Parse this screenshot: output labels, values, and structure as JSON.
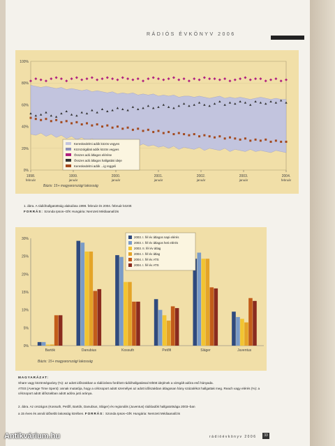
{
  "header": "RÁDIÓS ÉVKÖNYV 2006",
  "colors": {
    "page_bg": "#f4f2ec",
    "chart_bg": "#f1dfa8",
    "band": "#c2c4de",
    "reach": "#b0207f",
    "time": "#333333",
    "share": "#a34a1e"
  },
  "chart_data": [
    {
      "type": "line",
      "ylim": [
        0,
        100
      ],
      "yticks": [
        "0%",
        "20%",
        "40%",
        "60%",
        "80%",
        "100%"
      ],
      "x_ticks": [
        {
          "year": "1998.",
          "month": "február"
        },
        {
          "year": "1999.",
          "month": "január"
        },
        {
          "year": "2000.",
          "month": "január"
        },
        {
          "year": "2001.",
          "month": "január"
        },
        {
          "year": "2002.",
          "month": "január"
        },
        {
          "year": "2003.",
          "month": "január"
        },
        {
          "year": "2004.",
          "month": "február"
        }
      ],
      "legend": [
        "Kereskedelmi adók közös vegyes",
        "Közszolgálati adók közös vegyes",
        "Összes adó átlagos elérése",
        "Összes adó átlagos hallgatási ideje",
        "Kereskedelmi adók ...ig reggeli"
      ],
      "series": [
        {
          "name": "Összes adó átlagos elérése",
          "values": [
            82,
            84,
            83,
            82,
            84,
            85,
            84,
            82,
            84,
            85,
            83,
            84,
            85,
            83,
            84,
            85,
            84,
            83,
            85,
            84,
            83,
            84,
            82,
            84,
            85,
            84,
            83,
            84,
            85,
            83,
            84,
            82,
            84,
            83,
            85,
            84,
            84,
            83,
            84,
            82,
            83,
            84,
            85,
            83,
            84,
            84,
            82,
            83,
            84,
            82,
            83
          ]
        },
        {
          "name": "Összes adó átlagos hallgatási ideje",
          "values": [
            52,
            50,
            51,
            53,
            50,
            49,
            52,
            54,
            51,
            50,
            53,
            52,
            55,
            53,
            56,
            54,
            55,
            57,
            56,
            55,
            58,
            56,
            57,
            59,
            57,
            58,
            60,
            58,
            57,
            59,
            61,
            59,
            60,
            62,
            60,
            59,
            61,
            63,
            60,
            62,
            61,
            63,
            62,
            60,
            63,
            62,
            61,
            63,
            62,
            64,
            62
          ]
        },
        {
          "name": "Közszolgálati adók közös vegyes",
          "values": [
            48,
            47,
            46,
            47,
            45,
            46,
            44,
            45,
            43,
            44,
            42,
            43,
            41,
            42,
            40,
            41,
            39,
            40,
            38,
            39,
            37,
            38,
            36,
            37,
            35,
            36,
            34,
            35,
            33,
            34,
            33,
            32,
            33,
            31,
            32,
            31,
            30,
            31,
            29,
            30,
            29,
            28,
            29,
            27,
            28,
            27,
            28,
            26,
            27,
            26,
            26
          ]
        }
      ],
      "band_top": [
        78,
        77,
        76,
        77,
        76,
        75,
        76,
        74,
        75,
        74,
        73,
        74,
        72,
        73,
        72,
        71,
        72,
        70,
        71,
        70,
        71,
        69,
        70,
        69,
        70,
        68,
        69,
        68,
        69,
        67,
        68,
        68,
        67,
        68,
        67,
        66,
        67,
        68,
        66,
        67,
        66,
        67,
        66,
        65,
        66,
        67,
        66,
        65,
        66,
        65,
        65
      ],
      "band_bottom": [
        33,
        32,
        34,
        31,
        33,
        30,
        32,
        29,
        31,
        28,
        30,
        27,
        29,
        26,
        28,
        25,
        27,
        24,
        26,
        23,
        25,
        22,
        24,
        22,
        23,
        21,
        22,
        20,
        22,
        19,
        21,
        20,
        19,
        21,
        18,
        20,
        19,
        18,
        20,
        17,
        19,
        18,
        17,
        19,
        17,
        18,
        17,
        16,
        18,
        17,
        16
      ],
      "note": "Bázis: 15+ magyarországi lakosság"
    },
    {
      "type": "bar",
      "ylim": [
        0,
        30
      ],
      "yticks": [
        "0%",
        "5%",
        "10%",
        "15%",
        "20%",
        "25%",
        "30%"
      ],
      "categories": [
        "Bartók",
        "Danubius",
        "Kossuth",
        "Petőfi",
        "Sláger",
        "Juventus"
      ],
      "series": [
        {
          "name": "2003. I. fél év átlagos napi elérés",
          "color": "#2f4a7e",
          "values": [
            1.0,
            29.3,
            25.3,
            13.0,
            24.3,
            9.5
          ]
        },
        {
          "name": "2003. I. fél év átlagos heti elérés",
          "color": "#7a9bc8",
          "values": [
            1.0,
            28.8,
            24.8,
            10.0,
            26.0,
            8.0
          ]
        },
        {
          "name": "2003. II. fél év átlag",
          "color": "#f2c431",
          "values": [
            0.3,
            26.3,
            17.8,
            8.5,
            24.3,
            7.5
          ]
        },
        {
          "name": "2004. I. fél év átlag",
          "color": "#e4a428",
          "values": [
            0.3,
            26.3,
            17.8,
            7.0,
            24.3,
            6.5
          ]
        },
        {
          "name": "2004. I. fél év ATS",
          "color": "#c25c1a",
          "values": [
            8.5,
            15.3,
            12.3,
            11.0,
            16.3,
            13.3
          ]
        },
        {
          "name": "2004. I. fél év ATS",
          "color": "#8a2b1e",
          "values": [
            8.5,
            15.8,
            12.3,
            10.5,
            16.0,
            12.5
          ]
        }
      ],
      "note": "Bázis: 15+ magyarországi lakosság"
    }
  ],
  "captions": {
    "fig1": "1. ábra. A rádióhallgatottság alakulása 1998. február és 2004. február között",
    "fig1_src_label": "FORRÁS:",
    "fig1_src": "Szonda Ipsos–GfK Hungária: Nemzeti Médiaanalízis",
    "expl_title": "MAGYARÁZAT:",
    "expl_lines": [
      "Share vagy közönségarány (%): az adott időszakban a rádiózásra fordított rádióhallgatással töltött idejének a vizsgált adóra eső hányada.",
      "ATSS (Average Time Spent): annak mutatója, hogy a célcsoport adott személyei az adott időszakban átlagosan hány százalékot hallgattak meg. Reach vagy elérés (%): a célcsoport adott időszakban adott adóra jutó aránya."
    ],
    "fig2_lines": [
      "2. ábra. Az országos (Kossuth, Petőfi, Bartók, Danubius, Sláger) és regionális (Juventus) rádióadók hallgatottsága 2003–ban",
      "a 15 éves és annál idősebb lakosság körében."
    ],
    "fig2_src_label": "FORRÁS:",
    "fig2_src": "Szonda Ipsos–GfK Hungária: Nemzeti Médiaanalízis"
  },
  "footer": "rádióévkönyv 2006",
  "page_number": "33",
  "watermark": "Antikvárium.hu"
}
